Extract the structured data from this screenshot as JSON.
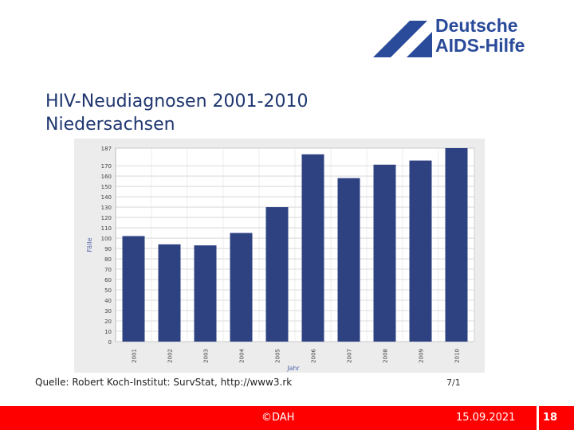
{
  "logo": {
    "line1": "Deutsche",
    "line2": "AIDS-Hilfe",
    "color": "#2a4a9a"
  },
  "title": {
    "line1": "HIV-Neudiagnosen 2001-2010",
    "line2": "Niedersachsen"
  },
  "source": {
    "text": "Quelle: Robert Koch-Institut: SurvStat, http://www3.rk",
    "right": "7/1"
  },
  "footer": {
    "center": "©DAH",
    "date": "15.09.2021",
    "page": "18",
    "bg_color": "#ff0000"
  },
  "chart_data": {
    "type": "bar",
    "title": "",
    "xlabel": "Jahr",
    "ylabel": "Fälle",
    "ylim": [
      0,
      187
    ],
    "y_ticks": [
      0,
      10,
      20,
      30,
      40,
      50,
      60,
      70,
      80,
      90,
      100,
      110,
      120,
      130,
      140,
      150,
      160,
      170,
      187
    ],
    "categories": [
      "2001",
      "2002",
      "2003",
      "2004",
      "2005",
      "2006",
      "2007",
      "2008",
      "2009",
      "2010"
    ],
    "values": [
      102,
      94,
      93,
      105,
      130,
      181,
      158,
      171,
      175,
      190
    ],
    "bar_color": "#2e4282",
    "grid": true
  }
}
